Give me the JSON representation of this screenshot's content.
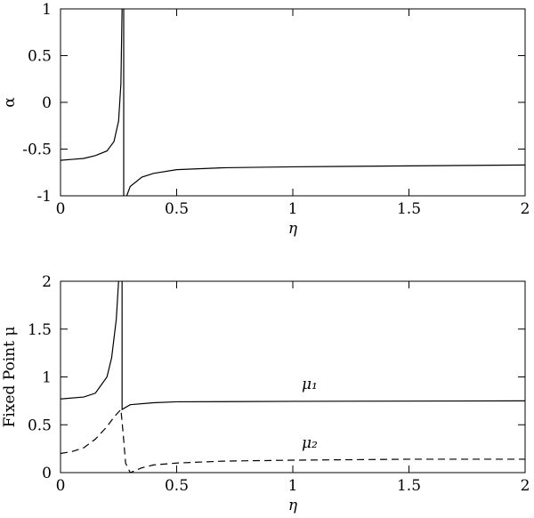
{
  "chart_data": [
    {
      "type": "line",
      "ylabel": "α",
      "xlabel": "η",
      "xlim": [
        0,
        2
      ],
      "ylim": [
        -1,
        1
      ],
      "xticks": [
        0,
        0.5,
        1,
        1.5,
        2
      ],
      "yticks": [
        -1,
        -0.5,
        0,
        0.5,
        1
      ],
      "series": [
        {
          "color": "#000000",
          "dash": false,
          "x": [
            0,
            0.05,
            0.1,
            0.15,
            0.2,
            0.23,
            0.25,
            0.26,
            0.265,
            0.27,
            0.272,
            0.272,
            0.28,
            0.285,
            0.3,
            0.35,
            0.4,
            0.5,
            0.7,
            1,
            1.5,
            2
          ],
          "values": [
            -0.62,
            -0.61,
            -0.6,
            -0.57,
            -0.52,
            -0.42,
            -0.2,
            0.2,
            1,
            null,
            1,
            -1,
            null,
            -1,
            -0.9,
            -0.8,
            -0.76,
            -0.72,
            -0.7,
            -0.69,
            -0.68,
            -0.67
          ]
        }
      ]
    },
    {
      "type": "line",
      "ylabel": "Fixed Point μ",
      "xlabel": "η",
      "xlim": [
        0,
        2
      ],
      "ylim": [
        0,
        2
      ],
      "xticks": [
        0,
        0.5,
        1,
        1.5,
        2
      ],
      "yticks": [
        0,
        0.5,
        1,
        1.5,
        2
      ],
      "series": [
        {
          "name": "μ₁",
          "color": "#000000",
          "dash": false,
          "x": [
            0,
            0.1,
            0.15,
            0.2,
            0.22,
            0.24,
            0.25,
            0.26,
            0.265,
            0.265,
            0.3,
            0.4,
            0.5,
            1,
            2
          ],
          "values": [
            0.77,
            0.79,
            0.83,
            1.0,
            1.2,
            1.6,
            2,
            null,
            2,
            0.66,
            0.71,
            0.73,
            0.74,
            0.745,
            0.75
          ]
        },
        {
          "name": "μ₂",
          "color": "#000000",
          "dash": true,
          "x": [
            0,
            0.05,
            0.1,
            0.15,
            0.2,
            0.23,
            0.26,
            0.27,
            0.28,
            0.3,
            0.35,
            0.4,
            0.5,
            0.7,
            1,
            1.5,
            2
          ],
          "values": [
            0.2,
            0.22,
            0.26,
            0.35,
            0.48,
            0.58,
            0.66,
            0.4,
            0.1,
            0.0,
            0.05,
            0.08,
            0.1,
            0.12,
            0.13,
            0.14,
            0.14
          ]
        }
      ]
    }
  ]
}
